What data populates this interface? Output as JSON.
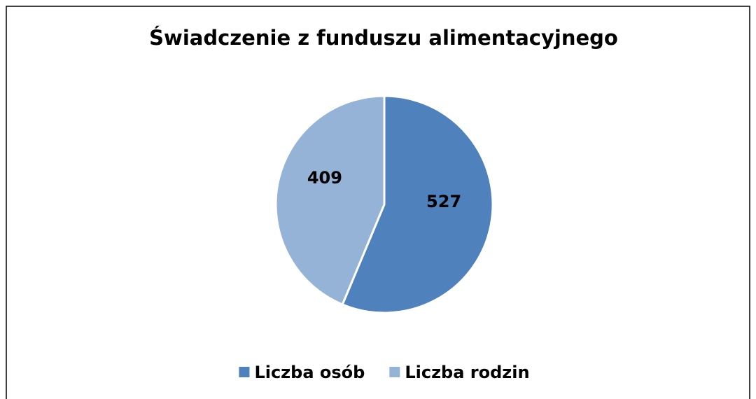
{
  "chart_data": {
    "type": "pie",
    "title": "Świadczenie z funduszu alimentacyjnego",
    "categories": [
      "Liczba osób",
      "Liczba rodzin"
    ],
    "values": [
      527,
      409
    ],
    "colors": [
      "#4f81bd",
      "#95b3d7"
    ],
    "legend": "bottom"
  }
}
